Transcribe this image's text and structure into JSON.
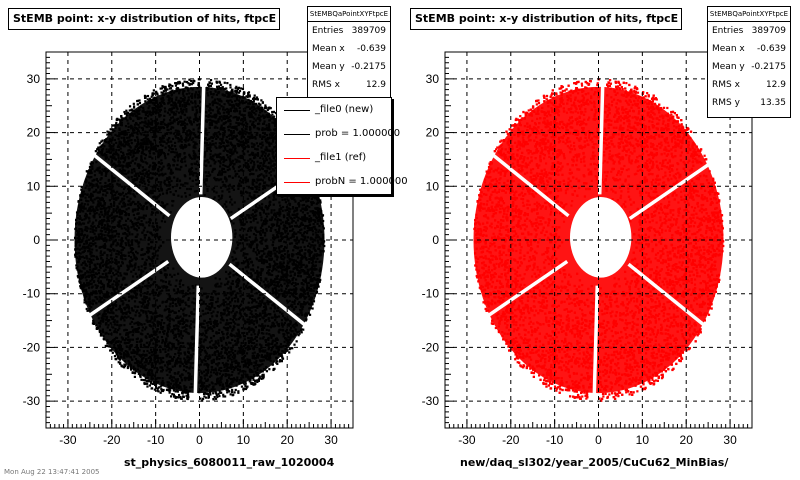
{
  "colors": {
    "black_series": "#000000",
    "red_series": "#ff0000",
    "frame": "#000000"
  },
  "left": {
    "title": "StEMB point: x-y distribution of hits, ftpcE",
    "stats": {
      "name": "StEMBQaPointXYFtpcE",
      "rows": [
        {
          "label": "Entries",
          "value": "389709"
        },
        {
          "label": "Mean x",
          "value": "-0.639"
        },
        {
          "label": "Mean y",
          "value": "-0.2175"
        },
        {
          "label": "RMS x",
          "value": "12.9"
        }
      ]
    },
    "legend": [
      {
        "label": "_file0 (new)",
        "color": "#000000"
      },
      {
        "label": "prob = 1.000000",
        "color": "#000000"
      },
      {
        "label": "_file1 (ref)",
        "color": "#ff0000"
      },
      {
        "label": "probN = 1.000000",
        "color": "#ff0000"
      }
    ],
    "xlabel": "st_physics_6080011_raw_1020004"
  },
  "right": {
    "title": "StEMB point: x-y distribution of hits, ftpcE",
    "stats": {
      "name": "StEMBQaPointXYFtpcE",
      "rows": [
        {
          "label": "Entries",
          "value": "389709"
        },
        {
          "label": "Mean x",
          "value": "-0.639"
        },
        {
          "label": "Mean y",
          "value": "-0.2175"
        },
        {
          "label": "RMS x",
          "value": "12.9"
        },
        {
          "label": "RMS y",
          "value": "13.35"
        }
      ]
    },
    "xlabel": "new/daq_sl302/year_2005/CuCu62_MinBias/"
  },
  "footer": "Mon Aug 22 13:47:41 2005",
  "chart_data": [
    {
      "type": "scatter",
      "title": "StEMB point: x-y distribution of hits, ftpcE",
      "xlabel": "st_physics_6080011_raw_1020004",
      "xlim": [
        -35,
        35
      ],
      "ylim": [
        -35,
        35
      ],
      "x_ticks": [
        -30,
        -20,
        -10,
        0,
        10,
        20,
        30
      ],
      "y_ticks": [
        -30,
        -20,
        -10,
        0,
        10,
        20,
        30
      ],
      "grid": true,
      "legend_position": "top-right",
      "series": [
        {
          "name": "_file0 (new)",
          "color": "#000000",
          "distribution": {
            "shape": "annulus",
            "outer_radius_x": 30,
            "outer_radius_y": 30,
            "inner_radius": 7.5,
            "gap_angles_deg": [
              88,
              268,
              28,
              148,
              208,
              328
            ]
          }
        }
      ],
      "legend": [
        "_file0 (new)",
        "prob = 1.000000",
        "_file1 (ref)",
        "probN = 1.000000"
      ]
    },
    {
      "type": "scatter",
      "title": "StEMB point: x-y distribution of hits, ftpcE",
      "xlabel": "new/daq_sl302/year_2005/CuCu62_MinBias/",
      "xlim": [
        -35,
        35
      ],
      "ylim": [
        -35,
        35
      ],
      "x_ticks": [
        -30,
        -20,
        -10,
        0,
        10,
        20,
        30
      ],
      "y_ticks": [
        -30,
        -20,
        -10,
        0,
        10,
        20,
        30
      ],
      "grid": true,
      "series": [
        {
          "name": "_file1 (ref)",
          "color": "#ff0000",
          "distribution": {
            "shape": "annulus",
            "outer_radius_x": 30,
            "outer_radius_y": 30,
            "inner_radius": 7.5,
            "gap_angles_deg": [
              88,
              268,
              28,
              148,
              208,
              328
            ]
          }
        }
      ]
    }
  ]
}
